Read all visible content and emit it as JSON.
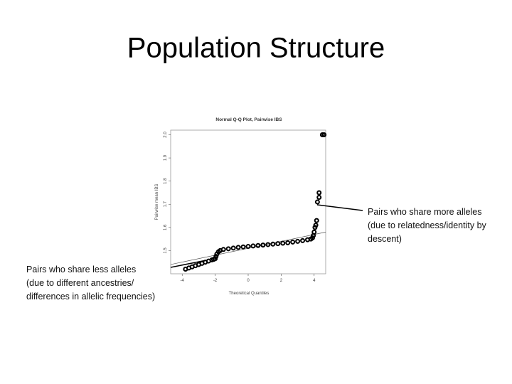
{
  "slide_title": "Population Structure",
  "chart_data": {
    "type": "scatter",
    "title": "Normal Q-Q Plot, Pairwise IBS",
    "x_label": "Theoretical Quantiles",
    "y_label": "Pairwise mean IBS",
    "x": [
      -3.8,
      -3.6,
      -3.4,
      -3.2,
      -3.0,
      -2.8,
      -2.6,
      -2.4,
      -2.2,
      -2.1,
      -2.0,
      -1.95,
      -1.9,
      -1.8,
      -1.7,
      -1.5,
      -1.2,
      -0.9,
      -0.6,
      -0.3,
      0,
      0.3,
      0.6,
      0.9,
      1.2,
      1.5,
      1.8,
      2.1,
      2.4,
      2.7,
      3.0,
      3.3,
      3.6,
      3.8,
      3.9,
      3.95,
      4.0,
      4.05,
      4.1,
      4.15,
      4.2,
      4.3,
      4.3,
      4.5,
      4.6
    ],
    "values": [
      1.42,
      1.425,
      1.43,
      1.435,
      1.44,
      1.445,
      1.45,
      1.455,
      1.46,
      1.462,
      1.465,
      1.475,
      1.485,
      1.495,
      1.5,
      1.505,
      1.508,
      1.511,
      1.514,
      1.516,
      1.518,
      1.52,
      1.522,
      1.524,
      1.526,
      1.528,
      1.53,
      1.532,
      1.534,
      1.537,
      1.54,
      1.543,
      1.547,
      1.55,
      1.555,
      1.565,
      1.58,
      1.6,
      1.61,
      1.63,
      1.71,
      1.73,
      1.75,
      2.0,
      2.0
    ],
    "color": "#000000",
    "reference_line": {
      "x": [
        -4.7,
        4.7
      ],
      "values": [
        1.44,
        1.58
      ]
    },
    "xlim": [
      -4.7,
      4.7
    ],
    "ylim": [
      1.4,
      2.02
    ],
    "xticks": [
      -4,
      -2,
      0,
      2,
      4
    ],
    "yticks": [
      {
        "value": 2,
        "label": "2.0"
      },
      1.9,
      1.8,
      1.7,
      1.6,
      1.5
    ]
  },
  "annotations": [
    {
      "lines": [
        "Pairs who share more alleles",
        "(due to relatedness/identity by",
        "descent)"
      ]
    },
    {
      "lines": [
        "Pairs who share less alleles",
        "(due to different ancestries/",
        "differences in allelic frequencies)"
      ]
    }
  ]
}
